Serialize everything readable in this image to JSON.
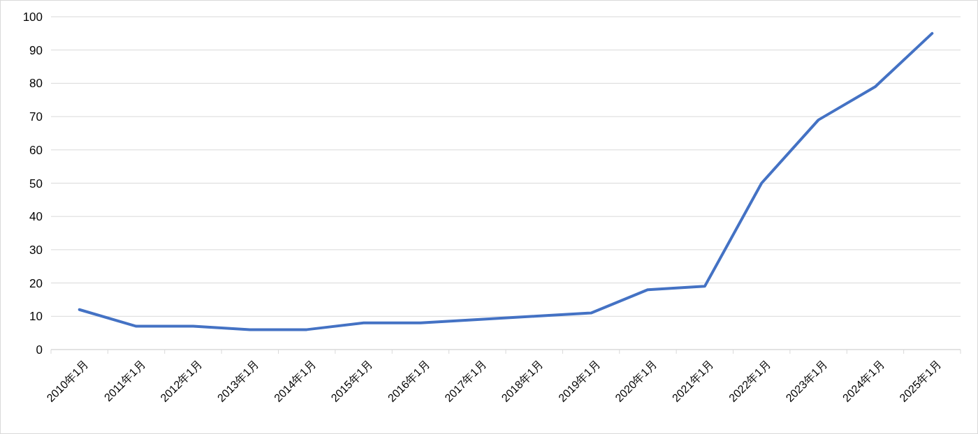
{
  "chart_data": {
    "type": "line",
    "categories": [
      "2010年1月",
      "2011年1月",
      "2012年1月",
      "2013年1月",
      "2014年1月",
      "2015年1月",
      "2016年1月",
      "2017年1月",
      "2018年1月",
      "2019年1月",
      "2020年1月",
      "2021年1月",
      "2022年1月",
      "2023年1月",
      "2024年1月",
      "2025年1月"
    ],
    "series": [
      {
        "color": "#4472c4",
        "values": [
          12,
          7,
          7,
          6,
          6,
          8,
          8,
          9,
          10,
          11,
          18,
          19,
          50,
          69,
          79,
          95
        ]
      }
    ],
    "ylim": [
      0,
      100
    ],
    "yticks": [
      0,
      10,
      20,
      30,
      40,
      50,
      60,
      70,
      80,
      90,
      100
    ],
    "grid": "y",
    "marker": "none",
    "line_style": "solid"
  }
}
